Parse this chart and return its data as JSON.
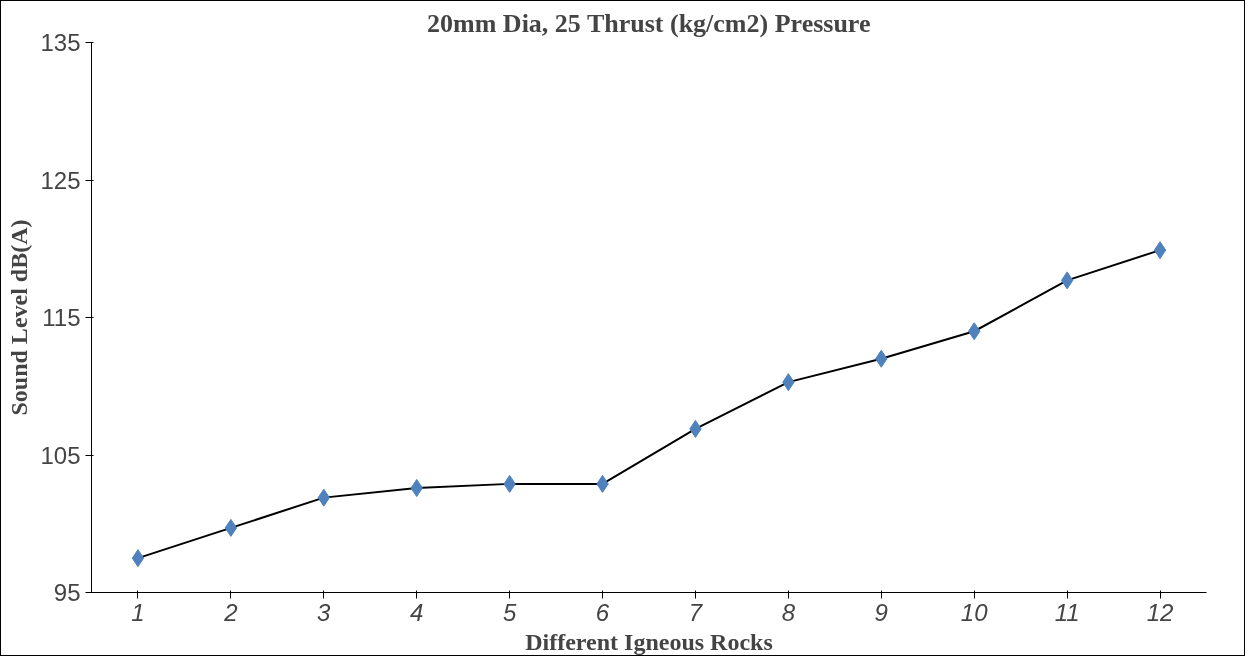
{
  "chart_data": {
    "type": "line",
    "title": "20mm Dia, 25 Thrust (kg/cm2) Pressure",
    "xlabel": "Different Igneous Rocks",
    "ylabel": "Sound Level dB(A)",
    "categories": [
      "1",
      "2",
      "3",
      "4",
      "5",
      "6",
      "7",
      "8",
      "9",
      "10",
      "11",
      "12"
    ],
    "series": [
      {
        "color": "#4f81bd",
        "values": [
          97.5,
          99.7,
          101.9,
          102.6,
          102.9,
          102.9,
          106.9,
          110.3,
          112.0,
          114.0,
          117.7,
          119.9
        ]
      }
    ],
    "ylim": [
      95,
      135
    ],
    "yticks": [
      95,
      105,
      115,
      125,
      135
    ],
    "grid": false,
    "marker": "diamond",
    "line_style": "solid"
  }
}
